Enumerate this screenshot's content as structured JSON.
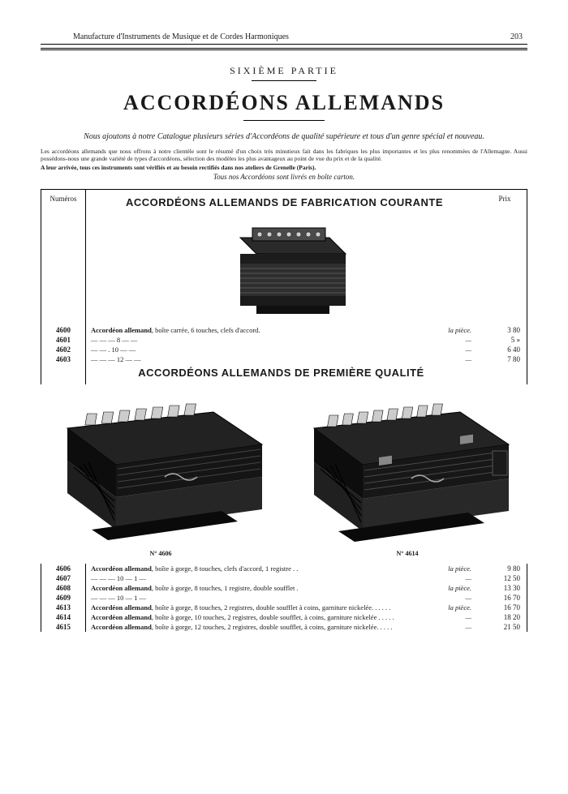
{
  "header": {
    "publisher": "Manufacture d'Instruments de Musique et de Cordes Harmoniques",
    "page_number": "203"
  },
  "part_title": "SIXIÈME PARTIE",
  "main_title": "ACCORDÉONS ALLEMANDS",
  "intro": {
    "italic": "Nous ajoutons à notre Catalogue plusieurs séries d'Accordéons de qualité supérieure et tous d'un genre spécial et nouveau.",
    "body": "Les accordéons allemands que nous offrons à notre clientèle sont le résumé d'un choix très minutieux fait dans les fabriques les plus importantes et les plus renommées de l'Allemagne. Aussi possédons-nous une grande variété de types d'accordéons, sélection des modèles les plus avantageux au point de vue du prix et de la qualité.",
    "bold": "A leur arrivée, tous ces instruments sont vérifiés et au besoin rectifiés dans nos ateliers de Grenelle (Paris).",
    "final_italic": "Tous nos Accordéons sont livrés en boîte carton."
  },
  "columns": {
    "num_header": "Numéros",
    "price_header": "Prix"
  },
  "section1": {
    "title": "ACCORDÉONS ALLEMANDS DE FABRICATION COURANTE",
    "rows": [
      {
        "num": "4600",
        "desc": "Accordéon allemand, boîte carrée, 6 touches, clefs d'accord.",
        "unit": "la pièce.",
        "price": "3 80"
      },
      {
        "num": "4601",
        "desc": "—            —            —     8      —            —",
        "unit": "—",
        "price": "5  »"
      },
      {
        "num": "4602",
        "desc": "—            —            .    10      —            —",
        "unit": "—",
        "price": "6 40"
      },
      {
        "num": "4603",
        "desc": "—            —            —    12      —            —",
        "unit": "—",
        "price": "7 80"
      }
    ]
  },
  "section2": {
    "title": "ACCORDÉONS ALLEMANDS DE PREMIÈRE QUALITÉ",
    "caption_left": "N° 4606",
    "caption_right": "N° 4614",
    "rows": [
      {
        "num": "4606",
        "desc": "Accordéon allemand, boîte à gorge, 8 touches, clefs d'accord, 1 registre . .",
        "unit": "la pièce.",
        "price": "9 80"
      },
      {
        "num": "4607",
        "desc": "—            —            —   10   —    1    —",
        "unit": "—",
        "price": "12 50"
      },
      {
        "num": "4608",
        "desc": "Accordéon allemand, boîte à gorge, 8 touches, 1 registre, double soufflet .",
        "unit": "la pièce.",
        "price": "13 30"
      },
      {
        "num": "4609",
        "desc": "—            —            —   10   —   1   —",
        "unit": "—",
        "price": "16 70"
      },
      {
        "num": "4613",
        "desc": "Accordéon allemand, boîte à gorge, 8 touches, 2 registres, double soufflet à coins, garniture nickelée. . . . . .",
        "unit": "la pièce.",
        "price": "16 70"
      },
      {
        "num": "4614",
        "desc": "Accordéon allemand, boîte à gorge, 10 touches, 2 registres, double soufflet, à coins, garniture nickelée . . . . .",
        "unit": "—",
        "price": "18 20"
      },
      {
        "num": "4615",
        "desc": "Accordéon allemand, boîte à gorge, 12 touches, 2 registres, double soufflet, à coins, garniture nickelée. . . . .",
        "unit": "—",
        "price": "21 50"
      }
    ]
  },
  "colors": {
    "text": "#1a1a1a",
    "bg": "#ffffff",
    "rule": "#000000",
    "accordion_dark": "#1c1c1c",
    "accordion_mid": "#3a3a3a",
    "accordion_light": "#6b6b6b"
  }
}
